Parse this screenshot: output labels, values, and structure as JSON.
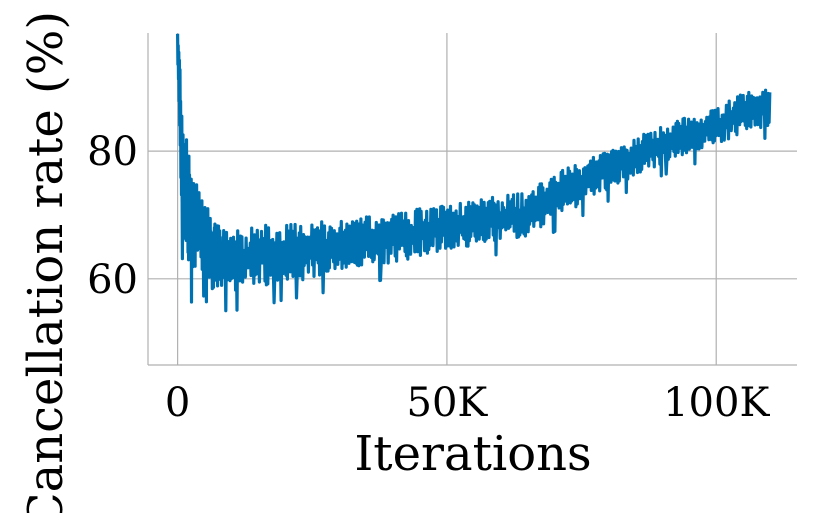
{
  "chart_data": {
    "type": "line",
    "title": "",
    "xlabel": "Iterations",
    "ylabel": "Cancellation rate (%)",
    "xlim": [
      -5500,
      115000
    ],
    "ylim": [
      46.5,
      98.5
    ],
    "x_ticks": [
      {
        "value": 0,
        "label": "0"
      },
      {
        "value": 50000,
        "label": "50K"
      },
      {
        "value": 100000,
        "label": "100K"
      }
    ],
    "y_ticks": [
      {
        "value": 60,
        "label": "60"
      },
      {
        "value": 80,
        "label": "80"
      }
    ],
    "grid": true,
    "series_color": "#0072b2",
    "series": [
      {
        "x": [
          0,
          500,
          1000,
          2000,
          3000,
          4000,
          5000,
          6000,
          8000,
          10000,
          15000,
          20000,
          25000,
          30000,
          40000,
          50000,
          60000,
          65000,
          70000,
          80000,
          90000,
          100000,
          105000,
          110000
        ],
        "y": [
          96,
          86,
          76,
          71,
          69,
          68,
          67,
          64,
          63,
          63,
          63.5,
          64,
          64.5,
          65,
          66.5,
          68,
          69.5,
          70,
          73,
          77,
          81,
          84,
          86,
          87
        ],
        "band": [
          4,
          8,
          10,
          9,
          8,
          7,
          6,
          6,
          5,
          5,
          5,
          4.5,
          4.5,
          4,
          4,
          3.5,
          3.5,
          3.5,
          3.5,
          3,
          3,
          3,
          3,
          3
        ]
      }
    ]
  }
}
